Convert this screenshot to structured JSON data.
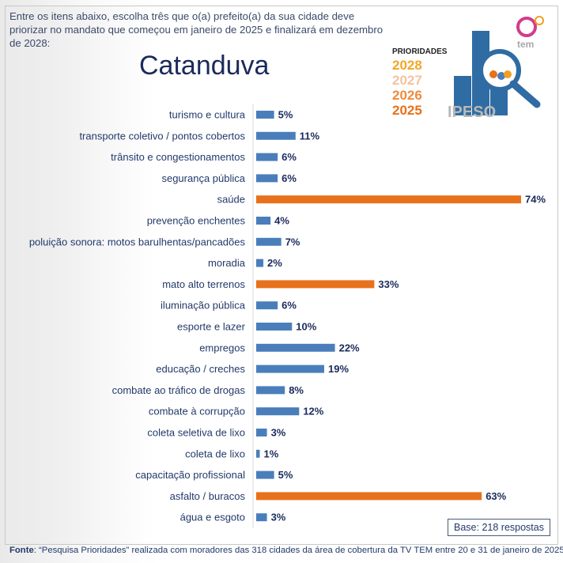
{
  "question": "Entre os itens abaixo, escolha três que o(a) prefeito(a) da sua cidade deve priorizar no mandato que começou em janeiro de 2025 e finalizará em dezembro de 2028:",
  "city": "Catanduva",
  "logo": {
    "title": "PRIORIDADES",
    "years": [
      "2028",
      "2027",
      "2026",
      "2025"
    ],
    "brand": "IPESO",
    "tv": "tv tem"
  },
  "base": "Base: 218 respostas",
  "source_label": "Fonte",
  "source_text": ": “Pesquisa Prioridades” realizada com moradores das 318 cidades da área de cobertura da TV TEM entre 20 e 31 de janeiro de 2025.",
  "colors": {
    "normal": "#4a7ebb",
    "highlight": "#e8711c"
  },
  "chart_data": {
    "type": "bar",
    "orientation": "horizontal",
    "title": "Catanduva",
    "unit": "%",
    "xlim": [
      0,
      80
    ],
    "categories": [
      "turismo e cultura",
      "transporte coletivo / pontos cobertos",
      "trânsito e congestionamentos",
      "segurança pública",
      "saúde",
      "prevenção enchentes",
      "poluição sonora: motos barulhentas/pancadões",
      "moradia",
      "mato alto terrenos",
      "iluminação pública",
      "esporte e lazer",
      "empregos",
      "educação / creches",
      "combate ao tráfico de drogas",
      "combate à corrupção",
      "coleta seletiva de lixo",
      "coleta de lixo",
      "capacitação profissional",
      "asfalto / buracos",
      "água e esgoto"
    ],
    "values": [
      5,
      11,
      6,
      6,
      74,
      4,
      7,
      2,
      33,
      6,
      10,
      22,
      19,
      8,
      12,
      3,
      1,
      5,
      63,
      3
    ],
    "highlighted": [
      "saúde",
      "mato alto terrenos",
      "asfalto / buracos"
    ],
    "value_labels": [
      "5%",
      "11%",
      "6%",
      "6%",
      "74%",
      "4%",
      "7%",
      "2%",
      "33%",
      "6%",
      "10%",
      "22%",
      "19%",
      "8%",
      "12%",
      "3%",
      "1%",
      "5%",
      "63%",
      "3%"
    ]
  }
}
